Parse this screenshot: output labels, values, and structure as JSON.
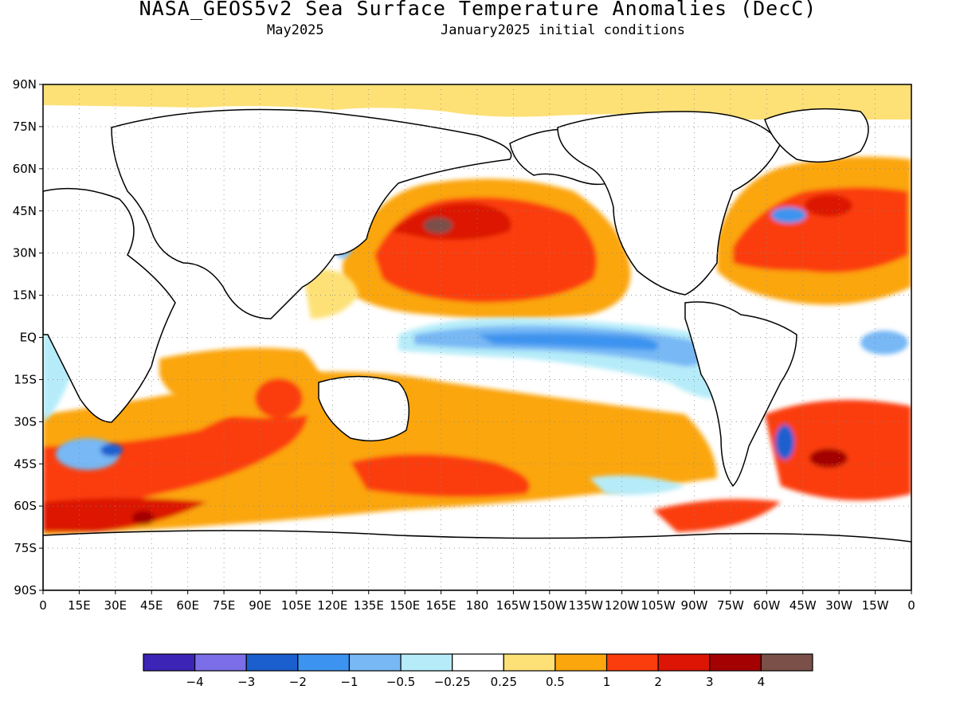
{
  "header": {
    "title": "NASA_GEOS5v2 Sea Surface Temperature Anomalies (DecC)",
    "subtitle_left": "May2025",
    "subtitle_right": "January2025 initial conditions"
  },
  "map": {
    "lat_labels": [
      "90N",
      "75N",
      "60N",
      "45N",
      "30N",
      "15N",
      "EQ",
      "15S",
      "30S",
      "45S",
      "60S",
      "75S",
      "90S"
    ],
    "lon_labels": [
      "0",
      "15E",
      "30E",
      "45E",
      "60E",
      "75E",
      "90E",
      "105E",
      "120E",
      "135E",
      "150E",
      "165E",
      "180",
      "165W",
      "150W",
      "135W",
      "120W",
      "105W",
      "90W",
      "75W",
      "60W",
      "45W",
      "30W",
      "15W",
      "0"
    ],
    "legend": {
      "colors": [
        "#3b24b6",
        "#7b6ee8",
        "#1b5fcf",
        "#3d94f0",
        "#77b8f5",
        "#b6ecf9",
        "#ffffff",
        "#fde177",
        "#fba60d",
        "#fb3c0c",
        "#dc1505",
        "#a40202",
        "#7a5048"
      ],
      "labels": [
        "-4",
        "-3",
        "-2",
        "-1",
        "-0.5",
        "-0.25",
        "0.25",
        "0.5",
        "1",
        "2",
        "3",
        "4"
      ]
    }
  }
}
